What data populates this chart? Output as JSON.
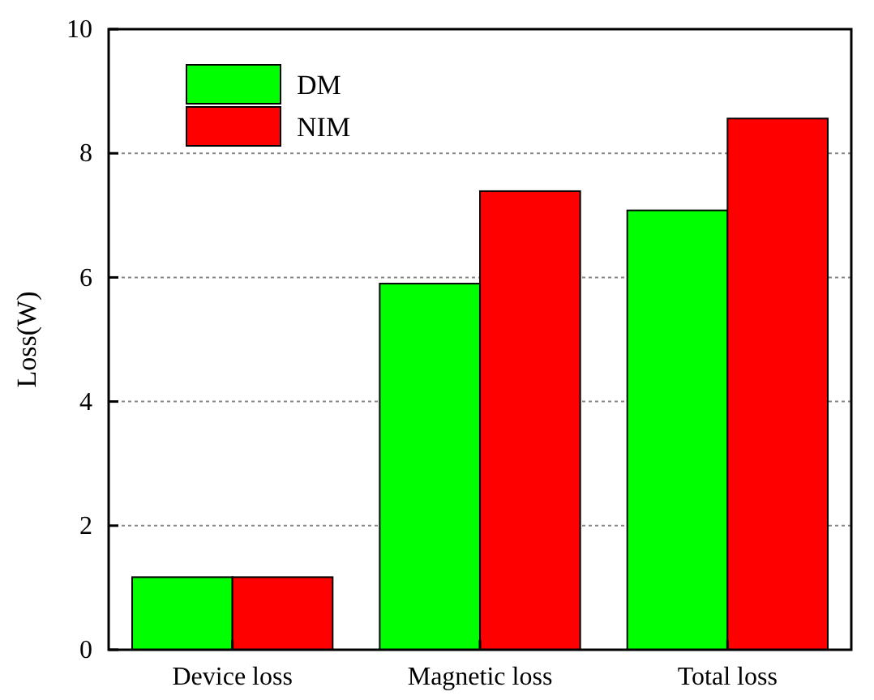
{
  "chart_data": {
    "type": "bar",
    "ylabel": "Loss(W)",
    "categories": [
      "Device loss",
      "Magnetic loss",
      "Total loss"
    ],
    "series": [
      {
        "name": "DM",
        "color": "#00ff00",
        "values": [
          1.17,
          5.9,
          7.08
        ]
      },
      {
        "name": "NIM",
        "color": "#ff0000",
        "values": [
          1.17,
          7.39,
          8.56
        ]
      }
    ],
    "ylim": [
      0,
      10
    ],
    "yticks": [
      0,
      2,
      4,
      6,
      8,
      10
    ],
    "grid": "y",
    "legend": "top left"
  }
}
